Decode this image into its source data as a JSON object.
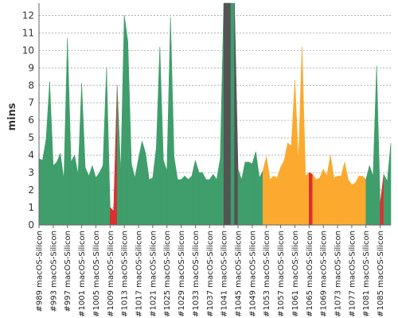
{
  "chart_data": {
    "type": "area",
    "title": "",
    "xlabel": "",
    "ylabel": "mins",
    "ylim": [
      0,
      12.7
    ],
    "y_ticks": [
      0,
      1,
      2,
      3,
      4,
      5,
      6,
      7,
      8,
      9,
      10,
      11,
      12
    ],
    "grid": true,
    "x_ticks": [
      "#989 macOS-Silicon",
      "#993 macOS-Silicon",
      "#997 macOS-Silicon",
      "#1001 macOS-Silicon",
      "#1005 macOS-Silicon",
      "#1009 macOS-Silicon",
      "#1013 macOS-Silicon",
      "#1017 macOS-Silicon",
      "#1021 macOS-Silicon",
      "#1025 macOS-Silicon",
      "#1029 macOS-Silicon",
      "#1033 macOS-Silicon",
      "#1037 macOS-Silicon",
      "#1041 macOS-Silicon",
      "#1045 macOS-Silicon",
      "#1049 macOS-Silicon",
      "#1053 macOS-Silicon",
      "#1057 macOS-Silicon",
      "#1061 macOS-Silicon",
      "#1065 macOS-Silicon",
      "#1069 macOS-Silicon",
      "#1073 macOS-Silicon",
      "#1077 macOS-Silicon",
      "#1081 macOS-Silicon",
      "#1085 macOS-Silicon"
    ],
    "x": [
      989,
      990,
      991,
      992,
      993,
      994,
      995,
      996,
      997,
      998,
      999,
      1000,
      1001,
      1002,
      1003,
      1004,
      1005,
      1006,
      1007,
      1008,
      1009,
      1010,
      1011,
      1012,
      1013,
      1014,
      1015,
      1016,
      1017,
      1018,
      1019,
      1020,
      1021,
      1022,
      1023,
      1024,
      1025,
      1026,
      1027,
      1028,
      1029,
      1030,
      1031,
      1032,
      1033,
      1034,
      1035,
      1036,
      1037,
      1038,
      1039,
      1040,
      1041,
      1042,
      1043,
      1044,
      1045,
      1046,
      1047,
      1048,
      1049,
      1050,
      1051,
      1052,
      1053,
      1054,
      1055,
      1056,
      1057,
      1058,
      1059,
      1060,
      1061,
      1062,
      1063,
      1064,
      1065,
      1066,
      1067,
      1068,
      1069,
      1070,
      1071,
      1072,
      1073,
      1074,
      1075,
      1076,
      1077,
      1078,
      1079,
      1080,
      1081,
      1082,
      1083,
      1084,
      1085,
      1086,
      1087,
      1088
    ],
    "values": [
      3.8,
      3.7,
      4.9,
      8.2,
      3.4,
      3.6,
      4.1,
      2.6,
      10.7,
      3.6,
      4.0,
      2.9,
      8.1,
      3.3,
      2.8,
      3.4,
      2.7,
      3.0,
      3.4,
      9.0,
      1.0,
      0.8,
      8.0,
      3.0,
      12.0,
      10.5,
      3.5,
      2.7,
      3.8,
      4.8,
      4.1,
      2.6,
      2.7,
      4.4,
      10.2,
      3.7,
      3.1,
      11.9,
      3.9,
      2.6,
      2.6,
      2.8,
      2.6,
      2.8,
      3.7,
      3.0,
      3.0,
      2.6,
      2.6,
      2.9,
      2.6,
      3.8,
      12.7,
      12.7,
      12.7,
      12.7,
      3.2,
      2.6,
      3.6,
      3.6,
      3.5,
      4.2,
      2.7,
      3.1,
      3.9,
      2.6,
      2.8,
      2.7,
      3.3,
      3.7,
      4.7,
      4.5,
      8.3,
      3.6,
      10.2,
      2.8,
      3.0,
      2.9,
      2.6,
      2.7,
      3.2,
      2.8,
      4.0,
      2.7,
      2.8,
      2.8,
      3.6,
      2.6,
      2.3,
      2.4,
      2.8,
      2.8,
      2.6,
      3.4,
      2.8,
      9.1,
      1.2,
      2.9,
      2.5,
      4.7
    ],
    "status": [
      "success",
      "success",
      "success",
      "success",
      "success",
      "success",
      "success",
      "success",
      "success",
      "success",
      "success",
      "success",
      "success",
      "success",
      "success",
      "success",
      "success",
      "success",
      "success",
      "success",
      "failure",
      "failure",
      "success",
      "success",
      "success",
      "success",
      "success",
      "success",
      "success",
      "success",
      "success",
      "success",
      "success",
      "success",
      "success",
      "success",
      "success",
      "success",
      "success",
      "success",
      "success",
      "success",
      "success",
      "success",
      "success",
      "success",
      "success",
      "success",
      "success",
      "success",
      "success",
      "success",
      "aborted",
      "aborted",
      "success",
      "aborted",
      "success",
      "success",
      "success",
      "success",
      "success",
      "success",
      "success",
      "unstable",
      "unstable",
      "unstable",
      "unstable",
      "unstable",
      "unstable",
      "unstable",
      "unstable",
      "unstable",
      "unstable",
      "unstable",
      "unstable",
      "unstable",
      "failure",
      "unstable",
      "unstable",
      "unstable",
      "unstable",
      "unstable",
      "unstable",
      "unstable",
      "unstable",
      "unstable",
      "unstable",
      "unstable",
      "unstable",
      "unstable",
      "unstable",
      "unstable",
      "success",
      "success",
      "success",
      "success",
      "failure",
      "success",
      "success",
      "success"
    ],
    "colors": {
      "success": "#3f9e6b",
      "failure": "#dd2f2f",
      "unstable": "#fbaa2f",
      "aborted": "#545454",
      "grid": "#999999",
      "axis": "#666666"
    }
  }
}
